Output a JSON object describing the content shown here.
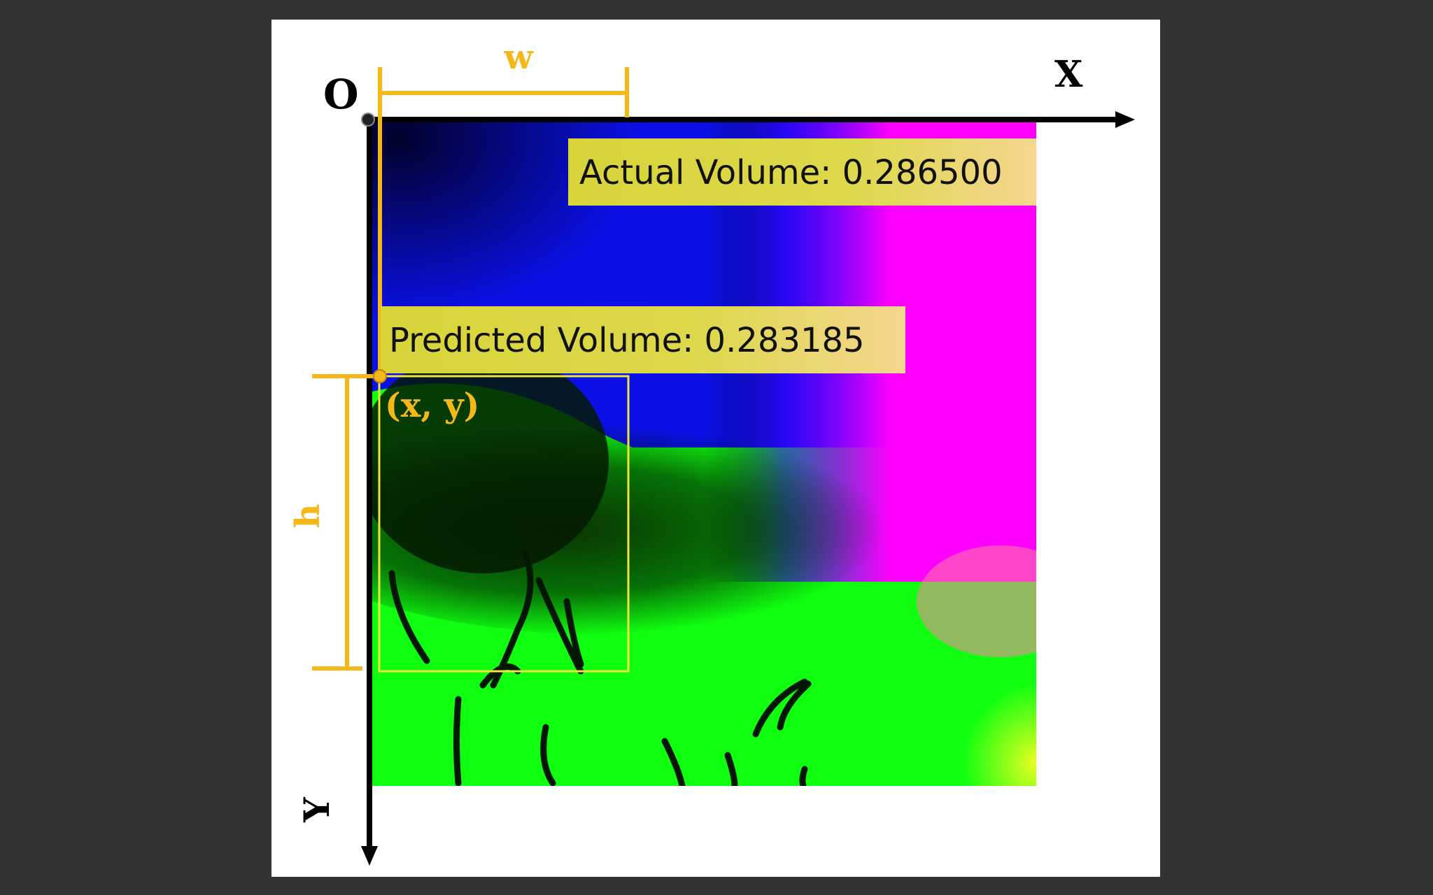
{
  "diagram": {
    "origin_label": "O",
    "x_axis_label": "X",
    "y_axis_label": "Y",
    "width_label": "w",
    "height_label": "h",
    "point_label": "(x, y)",
    "actual_volume_label": "Actual Volume: 0.286500",
    "predicted_volume_label": "Predicted Volume: 0.283185"
  },
  "colors": {
    "background": "#333333",
    "panel": "#ffffff",
    "annotation": "#f6b818",
    "bounding_box": "#f2e43a",
    "axis": "#000000",
    "label_background": "#e6d845"
  }
}
